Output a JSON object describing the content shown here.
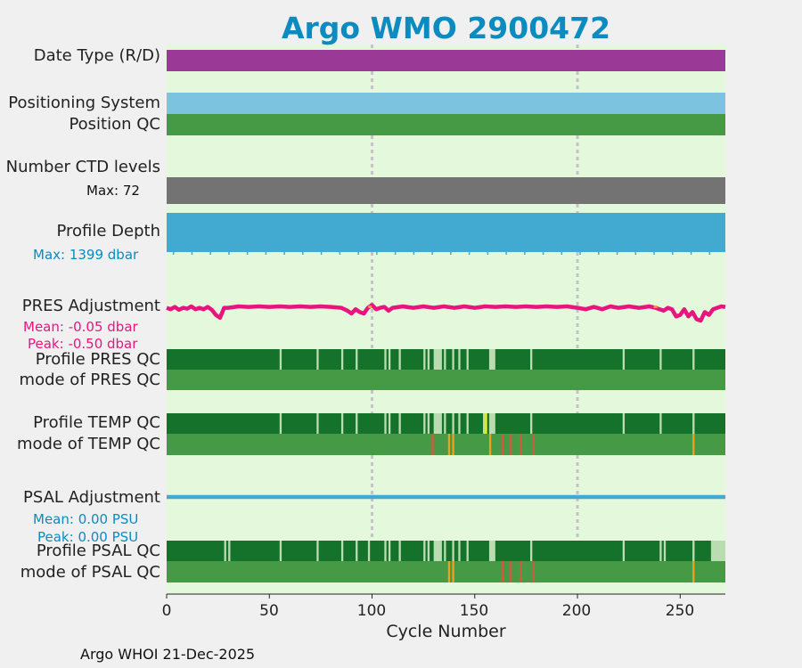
{
  "colors": {
    "page_bg": "#f0f0f0",
    "plot_bg": "#e4f8dc",
    "title": "#0b8bbf",
    "date_type": "#9b3a96",
    "positioning": "#7cc3df",
    "position_qc": "#469a46",
    "ctd": "#737373",
    "depth": "#42aad0",
    "pres_adj": "#e8157f",
    "qc_dark": "#14722a",
    "qc_mid": "#469a46",
    "qc_light": "#b9ddb0",
    "qc_yellow": "#f5f516",
    "qc_orange": "#f0a020",
    "qc_red": "#d25a3c",
    "psal_adj": "#42aad0",
    "stat_blue": "#0b8bbf",
    "stat_pink": "#e8157f",
    "grid": "#c4c4c4"
  },
  "title": "Argo WMO 2900472",
  "row_labels": {
    "date_type": "Date Type (R/D)",
    "positioning_system": "Positioning System",
    "position_qc": "Position QC",
    "ctd_levels": "Number CTD levels",
    "profile_depth": "Profile Depth",
    "pres_adjustment": "PRES Adjustment",
    "profile_pres_qc": "Profile PRES QC",
    "mode_pres_qc": "mode of PRES QC",
    "profile_temp_qc": "Profile TEMP QC",
    "mode_temp_qc": "mode of TEMP QC",
    "psal_adjustment": "PSAL Adjustment",
    "profile_psal_qc": "Profile PSAL QC",
    "mode_psal_qc": "mode of PSAL QC"
  },
  "stats": {
    "ctd_max": "Max: 72",
    "depth_max": "Max: 1399 dbar",
    "pres_mean": "Mean: -0.05 dbar",
    "pres_peak": "Peak: -0.50 dbar",
    "psal_mean": "Mean: 0.00 PSU",
    "psal_peak": "Peak: 0.00 PSU"
  },
  "footer": "Argo WHOI 21-Dec-2025",
  "chart_data": {
    "type": "table",
    "title": "Argo WMO 2900472",
    "xlabel": "Cycle Number",
    "xlim": [
      0,
      272
    ],
    "xticks": [
      0,
      50,
      100,
      150,
      200,
      250
    ],
    "grid_x": [
      100,
      200
    ],
    "n_cycles": 272,
    "profile_pres_qc": {
      "base": "A",
      "segments": [
        {
          "from": 55,
          "to": 56,
          "grade": "F"
        },
        {
          "from": 73,
          "to": 74,
          "grade": "F"
        },
        {
          "from": 85,
          "to": 86,
          "grade": "F"
        },
        {
          "from": 92,
          "to": 93,
          "grade": "F"
        },
        {
          "from": 106,
          "to": 107,
          "grade": "F"
        },
        {
          "from": 108,
          "to": 109,
          "grade": "F"
        },
        {
          "from": 113,
          "to": 114,
          "grade": "F"
        },
        {
          "from": 125,
          "to": 126,
          "grade": "F"
        },
        {
          "from": 127,
          "to": 128,
          "grade": "F"
        },
        {
          "from": 130,
          "to": 134,
          "grade": "D"
        },
        {
          "from": 135,
          "to": 136,
          "grade": "F"
        },
        {
          "from": 139,
          "to": 140,
          "grade": "F"
        },
        {
          "from": 142,
          "to": 143,
          "grade": "F"
        },
        {
          "from": 146,
          "to": 147,
          "grade": "F"
        },
        {
          "from": 157,
          "to": 160,
          "grade": "D"
        },
        {
          "from": 177,
          "to": 178,
          "grade": "F"
        },
        {
          "from": 222,
          "to": 223,
          "grade": "F"
        },
        {
          "from": 240,
          "to": 241,
          "grade": "F"
        },
        {
          "from": 256,
          "to": 257,
          "grade": "F"
        }
      ]
    },
    "mode_pres_qc": {
      "base": "1",
      "segments": []
    },
    "profile_temp_qc": {
      "base": "A",
      "segments": [
        {
          "from": 55,
          "to": 56,
          "grade": "F"
        },
        {
          "from": 73,
          "to": 74,
          "grade": "F"
        },
        {
          "from": 85,
          "to": 86,
          "grade": "F"
        },
        {
          "from": 92,
          "to": 93,
          "grade": "F"
        },
        {
          "from": 106,
          "to": 107,
          "grade": "F"
        },
        {
          "from": 108,
          "to": 109,
          "grade": "F"
        },
        {
          "from": 113,
          "to": 114,
          "grade": "F"
        },
        {
          "from": 125,
          "to": 126,
          "grade": "F"
        },
        {
          "from": 127,
          "to": 128,
          "grade": "F"
        },
        {
          "from": 130,
          "to": 134,
          "grade": "D"
        },
        {
          "from": 135,
          "to": 136,
          "grade": "F"
        },
        {
          "from": 139,
          "to": 140,
          "grade": "F"
        },
        {
          "from": 142,
          "to": 143,
          "grade": "F"
        },
        {
          "from": 146,
          "to": 147,
          "grade": "F"
        },
        {
          "from": 154,
          "to": 155,
          "grade": "F"
        },
        {
          "from": 155,
          "to": 156,
          "grade": "E"
        },
        {
          "from": 157,
          "to": 160,
          "grade": "D"
        },
        {
          "from": 177,
          "to": 178,
          "grade": "F"
        },
        {
          "from": 222,
          "to": 223,
          "grade": "F"
        },
        {
          "from": 240,
          "to": 241,
          "grade": "F"
        },
        {
          "from": 256,
          "to": 257,
          "grade": "F"
        }
      ]
    },
    "mode_temp_qc": {
      "base": "1",
      "segments": [
        {
          "from": 129,
          "to": 130,
          "grade": "4"
        },
        {
          "from": 137,
          "to": 138,
          "grade": "3"
        },
        {
          "from": 139,
          "to": 140,
          "grade": "3"
        },
        {
          "from": 157,
          "to": 158,
          "grade": "3"
        },
        {
          "from": 163,
          "to": 164,
          "grade": "4"
        },
        {
          "from": 167,
          "to": 168,
          "grade": "4"
        },
        {
          "from": 172,
          "to": 173,
          "grade": "4"
        },
        {
          "from": 178,
          "to": 179,
          "grade": "4"
        },
        {
          "from": 256,
          "to": 257,
          "grade": "3"
        }
      ]
    },
    "profile_psal_qc": {
      "base": "A",
      "segments": [
        {
          "from": 28,
          "to": 29,
          "grade": "F"
        },
        {
          "from": 30,
          "to": 31,
          "grade": "F"
        },
        {
          "from": 55,
          "to": 56,
          "grade": "F"
        },
        {
          "from": 73,
          "to": 74,
          "grade": "F"
        },
        {
          "from": 85,
          "to": 86,
          "grade": "F"
        },
        {
          "from": 92,
          "to": 93,
          "grade": "F"
        },
        {
          "from": 98,
          "to": 99,
          "grade": "F"
        },
        {
          "from": 106,
          "to": 107,
          "grade": "F"
        },
        {
          "from": 108,
          "to": 109,
          "grade": "F"
        },
        {
          "from": 113,
          "to": 114,
          "grade": "F"
        },
        {
          "from": 125,
          "to": 126,
          "grade": "F"
        },
        {
          "from": 127,
          "to": 128,
          "grade": "F"
        },
        {
          "from": 130,
          "to": 134,
          "grade": "D"
        },
        {
          "from": 135,
          "to": 136,
          "grade": "F"
        },
        {
          "from": 139,
          "to": 140,
          "grade": "F"
        },
        {
          "from": 142,
          "to": 143,
          "grade": "F"
        },
        {
          "from": 146,
          "to": 147,
          "grade": "F"
        },
        {
          "from": 157,
          "to": 160,
          "grade": "D"
        },
        {
          "from": 177,
          "to": 178,
          "grade": "F"
        },
        {
          "from": 222,
          "to": 223,
          "grade": "F"
        },
        {
          "from": 240,
          "to": 241,
          "grade": "F"
        },
        {
          "from": 242,
          "to": 243,
          "grade": "F"
        },
        {
          "from": 256,
          "to": 257,
          "grade": "F"
        },
        {
          "from": 265,
          "to": 272,
          "grade": "D"
        }
      ]
    },
    "mode_psal_qc": {
      "base": "1",
      "segments": [
        {
          "from": 137,
          "to": 138,
          "grade": "3"
        },
        {
          "from": 139,
          "to": 140,
          "grade": "3"
        },
        {
          "from": 163,
          "to": 164,
          "grade": "4"
        },
        {
          "from": 167,
          "to": 168,
          "grade": "4"
        },
        {
          "from": 172,
          "to": 173,
          "grade": "4"
        },
        {
          "from": 178,
          "to": 179,
          "grade": "4"
        },
        {
          "from": 256,
          "to": 257,
          "grade": "3"
        }
      ]
    },
    "pres_adjustment": {
      "units": "dbar",
      "cycles": [
        0,
        2,
        4,
        6,
        8,
        10,
        12,
        14,
        16,
        18,
        20,
        22,
        24,
        26,
        28,
        30,
        35,
        40,
        45,
        50,
        55,
        60,
        65,
        70,
        75,
        80,
        85,
        88,
        90,
        92,
        94,
        96,
        98,
        100,
        102,
        104,
        106,
        108,
        110,
        115,
        120,
        125,
        130,
        135,
        140,
        145,
        150,
        155,
        160,
        165,
        170,
        175,
        180,
        185,
        190,
        195,
        200,
        204,
        208,
        212,
        216,
        220,
        225,
        230,
        235,
        238,
        240,
        242,
        244,
        246,
        248,
        250,
        252,
        254,
        256,
        258,
        260,
        262,
        264,
        266,
        268,
        270,
        272
      ],
      "values": [
        -0.05,
        -0.1,
        -0.02,
        -0.12,
        -0.05,
        -0.08,
        0.0,
        -0.1,
        -0.05,
        -0.1,
        -0.02,
        -0.12,
        -0.3,
        -0.4,
        -0.05,
        -0.05,
        0.0,
        -0.02,
        0.0,
        -0.02,
        0.0,
        -0.02,
        0.0,
        -0.02,
        0.0,
        -0.02,
        -0.05,
        -0.15,
        -0.25,
        -0.1,
        -0.2,
        -0.25,
        -0.05,
        0.05,
        -0.1,
        -0.05,
        -0.02,
        -0.15,
        -0.05,
        0.0,
        -0.05,
        0.0,
        -0.05,
        0.0,
        -0.05,
        0.0,
        -0.05,
        0.0,
        -0.02,
        0.0,
        -0.02,
        0.0,
        -0.02,
        0.0,
        -0.02,
        0.0,
        -0.05,
        -0.1,
        -0.02,
        -0.1,
        0.0,
        -0.05,
        0.0,
        -0.05,
        0.0,
        -0.05,
        -0.1,
        -0.15,
        -0.05,
        -0.1,
        -0.35,
        -0.3,
        -0.1,
        -0.35,
        -0.2,
        -0.45,
        -0.5,
        -0.2,
        -0.3,
        -0.1,
        -0.05,
        0.0,
        -0.02
      ]
    },
    "pres_adjustment_flagged": [
      {
        "cycle": 99,
        "value": 0.0,
        "grade": "3"
      },
      {
        "cycle": 238,
        "value": 0.0,
        "grade": "3"
      }
    ],
    "psal_adjustment": {
      "units": "PSU",
      "value": 0.0
    }
  }
}
